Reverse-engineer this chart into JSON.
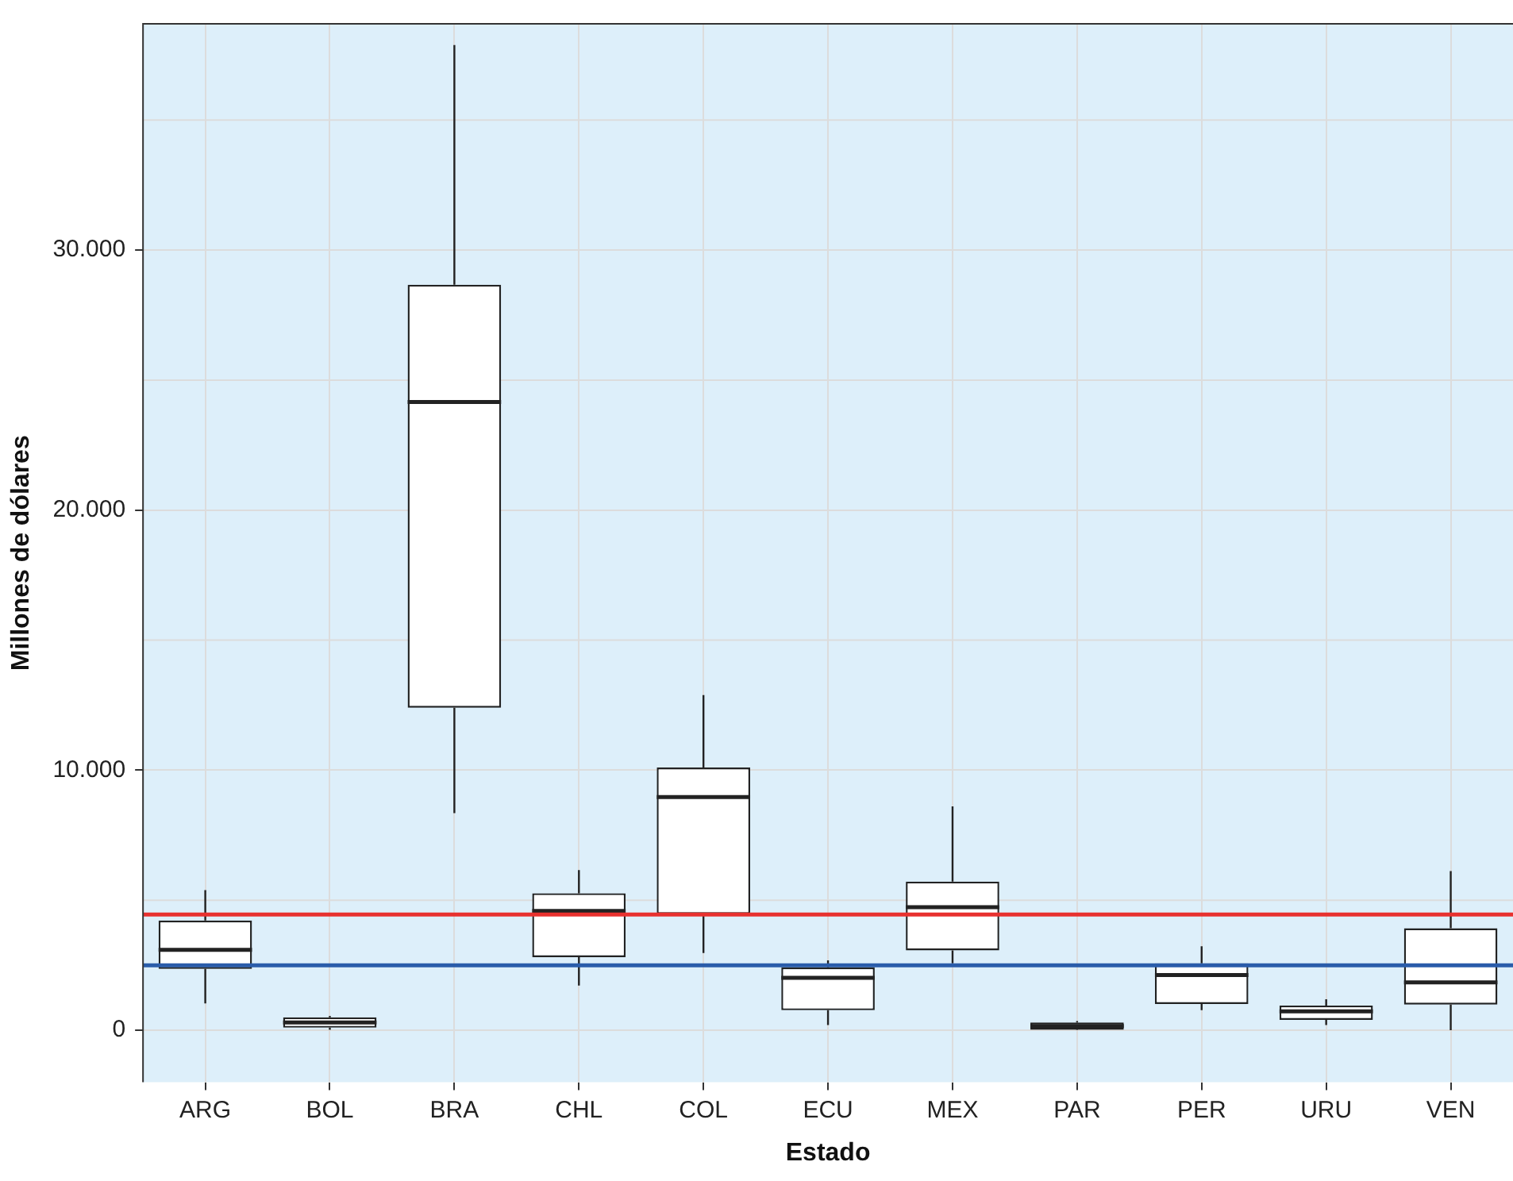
{
  "chart_data": {
    "type": "box",
    "xlabel": "Estado",
    "ylabel": "Millones de dólares",
    "categories": [
      "ARG",
      "BOL",
      "BRA",
      "CHL",
      "COL",
      "ECU",
      "MEX",
      "PAR",
      "PER",
      "URU",
      "VEN"
    ],
    "boxes": [
      {
        "low": 1030,
        "q1": 2360,
        "median": 3090,
        "q3": 4220,
        "high": 5390
      },
      {
        "low": 20,
        "q1": 100,
        "median": 300,
        "q3": 500,
        "high": 550
      },
      {
        "low": 8350,
        "q1": 12400,
        "median": 24160,
        "q3": 28670,
        "high": 37880
      },
      {
        "low": 1720,
        "q1": 2810,
        "median": 4590,
        "q3": 5270,
        "high": 6160
      },
      {
        "low": 2970,
        "q1": 4470,
        "median": 8970,
        "q3": 10100,
        "high": 12890
      },
      {
        "low": 200,
        "q1": 770,
        "median": 2020,
        "q3": 2420,
        "high": 2690
      },
      {
        "low": 2570,
        "q1": 3070,
        "median": 4730,
        "q3": 5720,
        "high": 8610
      },
      {
        "low": 0,
        "q1": 20,
        "median": 160,
        "q3": 300,
        "high": 350
      },
      {
        "low": 770,
        "q1": 1010,
        "median": 2120,
        "q3": 2570,
        "high": 3230
      },
      {
        "low": 200,
        "q1": 400,
        "median": 730,
        "q3": 950,
        "high": 1190
      },
      {
        "low": 0,
        "q1": 990,
        "median": 1840,
        "q3": 3920,
        "high": 6120
      }
    ],
    "ylim": [
      -2000,
      38700
    ],
    "yticks": [
      {
        "value": 0,
        "label": "0"
      },
      {
        "value": 10000,
        "label": "10.000"
      },
      {
        "value": 20000,
        "label": "20.000"
      },
      {
        "value": 30000,
        "label": "30.000"
      }
    ],
    "grid": true,
    "ref_lines": [
      {
        "axis": "y",
        "value": 4450,
        "color": "#e8312f"
      },
      {
        "axis": "y",
        "value": 2500,
        "color": "#2a5caa"
      }
    ]
  }
}
